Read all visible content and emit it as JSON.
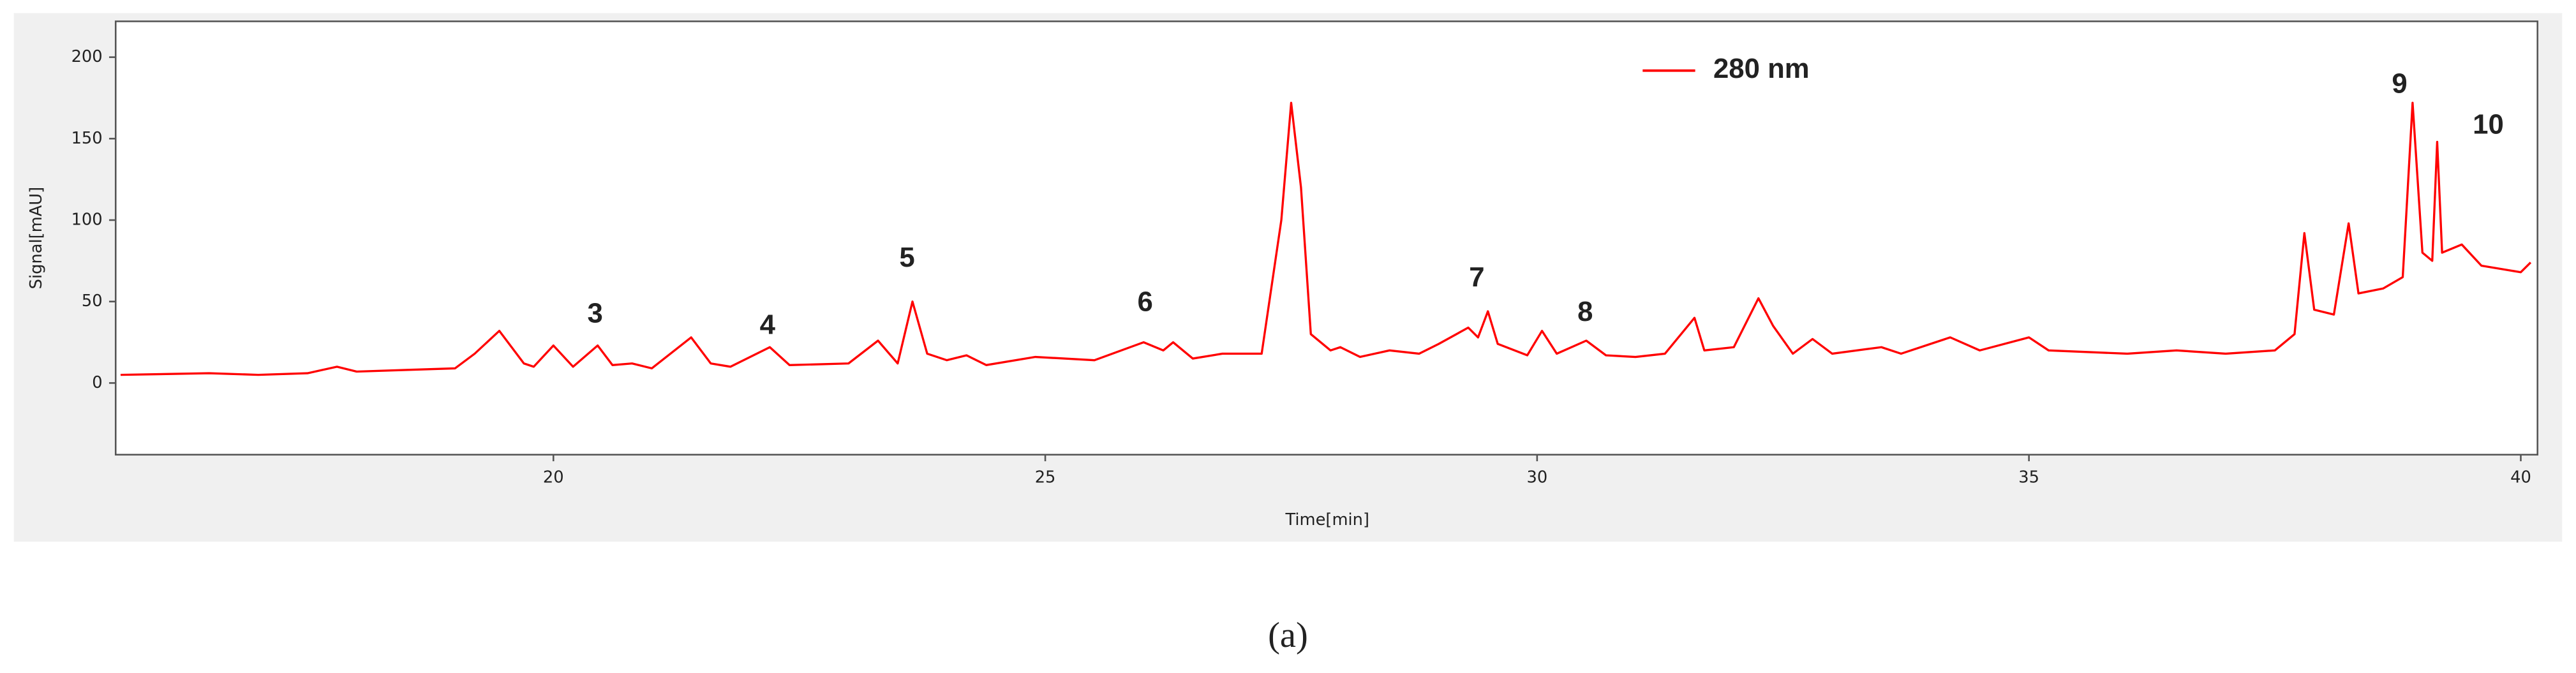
{
  "chart_data": {
    "type": "line",
    "x_label": "Time[min]",
    "y_label": "Signal[mAU]",
    "xlim": [
      15.55,
      40.17
    ],
    "xticks": [
      20,
      25,
      30,
      35,
      40
    ],
    "ylim": [
      -44,
      222
    ],
    "yticks": [
      0,
      50,
      100,
      150,
      200
    ],
    "grid": false,
    "legend": "top-center",
    "x": [
      15.6,
      16.5,
      17.0,
      17.5,
      17.8,
      18.0,
      18.5,
      19.0,
      19.2,
      19.45,
      19.7,
      19.8,
      20.0,
      20.2,
      20.45,
      20.6,
      20.8,
      21.0,
      21.4,
      21.6,
      21.8,
      22.2,
      22.4,
      23.0,
      23.3,
      23.5,
      23.65,
      23.8,
      24.0,
      24.2,
      24.4,
      24.9,
      25.5,
      26.0,
      26.2,
      26.3,
      26.5,
      26.8,
      27.2,
      27.4,
      27.5,
      27.6,
      27.7,
      27.9,
      28.0,
      28.2,
      28.5,
      28.8,
      29.0,
      29.3,
      29.4,
      29.5,
      29.6,
      29.9,
      30.05,
      30.2,
      30.5,
      30.7,
      31.0,
      31.3,
      31.6,
      31.7,
      32.0,
      32.25,
      32.4,
      32.6,
      32.8,
      33.0,
      33.5,
      33.7,
      34.2,
      34.5,
      35.0,
      35.2,
      36.0,
      36.5,
      37.0,
      37.5,
      37.7,
      37.8,
      37.9,
      38.1,
      38.25,
      38.35,
      38.6,
      38.8,
      38.9,
      39.0,
      39.1,
      39.15,
      39.2,
      39.4,
      39.6,
      39.8,
      40.0,
      40.1
    ],
    "series": [
      {
        "name": "280 nm",
        "color": "#ff0000",
        "values": [
          5,
          6,
          5,
          6,
          10,
          7,
          8,
          9,
          18,
          32,
          12,
          10,
          23,
          10,
          23,
          11,
          12,
          9,
          28,
          12,
          10,
          22,
          11,
          12,
          26,
          12,
          50,
          18,
          14,
          17,
          11,
          16,
          14,
          25,
          20,
          25,
          15,
          18,
          18,
          100,
          172,
          120,
          30,
          20,
          22,
          16,
          20,
          18,
          24,
          34,
          28,
          44,
          24,
          17,
          32,
          18,
          26,
          17,
          16,
          18,
          40,
          20,
          22,
          52,
          35,
          18,
          27,
          18,
          22,
          18,
          28,
          20,
          28,
          20,
          18,
          20,
          18,
          20,
          30,
          92,
          45,
          42,
          98,
          55,
          58,
          65,
          172,
          80,
          75,
          148,
          80,
          85,
          72,
          70,
          68,
          74
        ]
      }
    ],
    "annotations": [
      "3",
      "4",
      "5",
      "6",
      "7",
      "8",
      "9",
      "10"
    ]
  },
  "caption": "(a)"
}
